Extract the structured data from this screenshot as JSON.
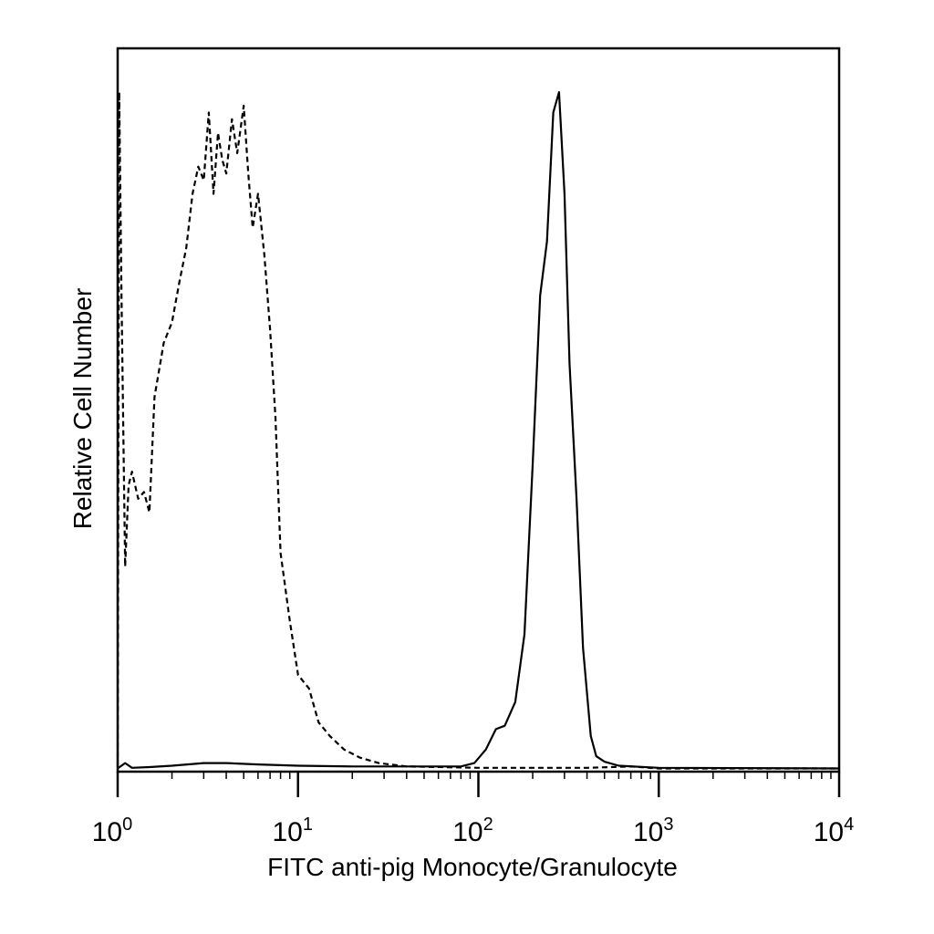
{
  "chart_data": {
    "type": "line",
    "title": "",
    "xlabel": "FITC anti-pig Monocyte/Granulocyte",
    "ylabel": "Relative Cell Number",
    "xscale": "log",
    "xlim": [
      1,
      10000
    ],
    "ylim": [
      0,
      100
    ],
    "x_tick_labels": [
      {
        "base": "10",
        "exp": "0",
        "value": 1
      },
      {
        "base": "10",
        "exp": "1",
        "value": 10
      },
      {
        "base": "10",
        "exp": "2",
        "value": 100
      },
      {
        "base": "10",
        "exp": "3",
        "value": 1000
      },
      {
        "base": "10",
        "exp": "4",
        "value": 10000
      }
    ],
    "grid": false,
    "legend": "none",
    "series": [
      {
        "style": "dashed",
        "color": "#000000",
        "points": [
          [
            1.0,
            0.5
          ],
          [
            1.02,
            100
          ],
          [
            1.05,
            70
          ],
          [
            1.1,
            30
          ],
          [
            1.15,
            42
          ],
          [
            1.2,
            44
          ],
          [
            1.3,
            40
          ],
          [
            1.4,
            41
          ],
          [
            1.5,
            38
          ],
          [
            1.6,
            55
          ],
          [
            1.8,
            63
          ],
          [
            2.0,
            66
          ],
          [
            2.2,
            72
          ],
          [
            2.4,
            77
          ],
          [
            2.6,
            85
          ],
          [
            2.8,
            89
          ],
          [
            3.0,
            87
          ],
          [
            3.2,
            97
          ],
          [
            3.4,
            85
          ],
          [
            3.6,
            94
          ],
          [
            3.8,
            90
          ],
          [
            4.0,
            88
          ],
          [
            4.3,
            96
          ],
          [
            4.6,
            91
          ],
          [
            5.0,
            98
          ],
          [
            5.3,
            88
          ],
          [
            5.6,
            80
          ],
          [
            6.0,
            85
          ],
          [
            6.5,
            76
          ],
          [
            7.0,
            65
          ],
          [
            7.5,
            52
          ],
          [
            8.0,
            32
          ],
          [
            9.0,
            22
          ],
          [
            10.0,
            14
          ],
          [
            11.5,
            12
          ],
          [
            13.0,
            7
          ],
          [
            15.0,
            5
          ],
          [
            18.0,
            3
          ],
          [
            22.0,
            1.8
          ],
          [
            28.0,
            1.0
          ],
          [
            40.0,
            0.5
          ],
          [
            100.0,
            0.3
          ],
          [
            400.0,
            0.3
          ],
          [
            700.0,
            0.5
          ],
          [
            1000.0,
            0.2
          ],
          [
            10000.0,
            0.2
          ]
        ]
      },
      {
        "style": "solid",
        "color": "#000000",
        "points": [
          [
            1.0,
            0.2
          ],
          [
            1.1,
            1.0
          ],
          [
            1.2,
            0.3
          ],
          [
            1.5,
            0.4
          ],
          [
            2.0,
            0.6
          ],
          [
            3.0,
            1.0
          ],
          [
            4.0,
            1.0
          ],
          [
            6.0,
            0.8
          ],
          [
            10.0,
            0.6
          ],
          [
            20.0,
            0.5
          ],
          [
            50.0,
            0.5
          ],
          [
            80.0,
            0.5
          ],
          [
            95.0,
            1.0
          ],
          [
            110.0,
            3.0
          ],
          [
            125.0,
            6.0
          ],
          [
            140.0,
            6.5
          ],
          [
            160.0,
            10.0
          ],
          [
            180.0,
            20.0
          ],
          [
            200.0,
            45.0
          ],
          [
            220.0,
            70.0
          ],
          [
            240.0,
            78.0
          ],
          [
            260.0,
            97.0
          ],
          [
            280.0,
            100.0
          ],
          [
            300.0,
            85.0
          ],
          [
            320.0,
            60.0
          ],
          [
            350.0,
            40.0
          ],
          [
            380.0,
            18.0
          ],
          [
            420.0,
            5.0
          ],
          [
            450.0,
            2.0
          ],
          [
            500.0,
            1.2
          ],
          [
            600.0,
            0.6
          ],
          [
            1000.0,
            0.3
          ],
          [
            10000.0,
            0.2
          ]
        ]
      }
    ]
  }
}
